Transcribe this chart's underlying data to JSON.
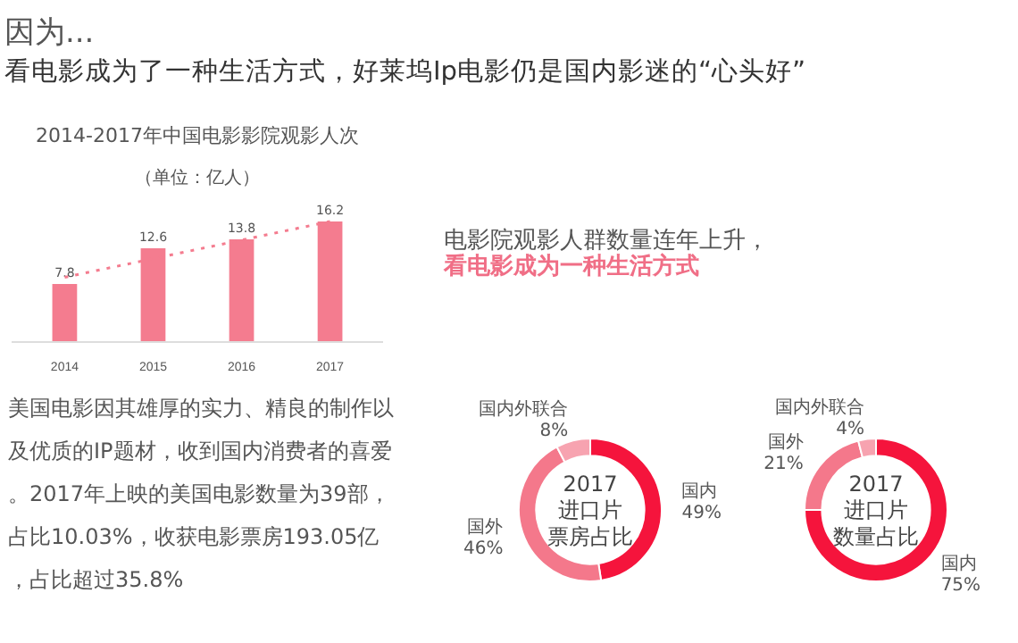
{
  "chart_data": [
    {
      "type": "other",
      "title": "因为...",
      "subtitle": "看电影成为了一种生活方式，好莱坞Ip电影仍是国内影迷的“心头好”"
    },
    {
      "type": "bar",
      "title": "2014-2017年中国电影影院观影人次",
      "subtitle": "（单位：亿人）",
      "categories": [
        "2014",
        "2015",
        "2016",
        "2017"
      ],
      "series": [
        {
          "type": "bar",
          "color": "#f47c8f",
          "values": [
            7.8,
            12.6,
            13.8,
            16.2
          ],
          "value_labels": [
            "7.8",
            "12.6",
            "13.8",
            "16.2"
          ]
        },
        {
          "type": "line",
          "color": "#f47c8f",
          "line_style": "dotted",
          "values": [
            8.7,
            11.2,
            13.7,
            16.2
          ]
        }
      ]
    },
    {
      "type": "other",
      "annotations": [
        "电影院观影人群数量连年上升，",
        "看电影成为一种生活方式"
      ]
    },
    {
      "type": "other",
      "annotations": [
        "美国电影因其雄厚的实力、精良的制作以及优质的IP题材，收到国内消费者的喜爱。2017年上映的美国电影数量为39部，占比10.03%，收获电影票房193.05亿，占比超过35.8%"
      ]
    },
    {
      "type": "donut",
      "title": "2017进口片票房占比",
      "categories": [
        "国内",
        "国外",
        "国内外联合"
      ],
      "values": [
        49,
        46,
        8
      ],
      "colors": [
        "#f5143c",
        "#f4788b",
        "#f7a3b0"
      ],
      "value_labels": [
        "49%",
        "46%",
        "8%"
      ]
    },
    {
      "type": "donut",
      "title": "2017进口片数量占比",
      "categories": [
        "国内",
        "国外",
        "国内外联合"
      ],
      "values": [
        75,
        21,
        4
      ],
      "colors": [
        "#f5143c",
        "#f4788b",
        "#f7a3b0"
      ],
      "value_labels": [
        "75%",
        "21%",
        "4%"
      ]
    }
  ]
}
